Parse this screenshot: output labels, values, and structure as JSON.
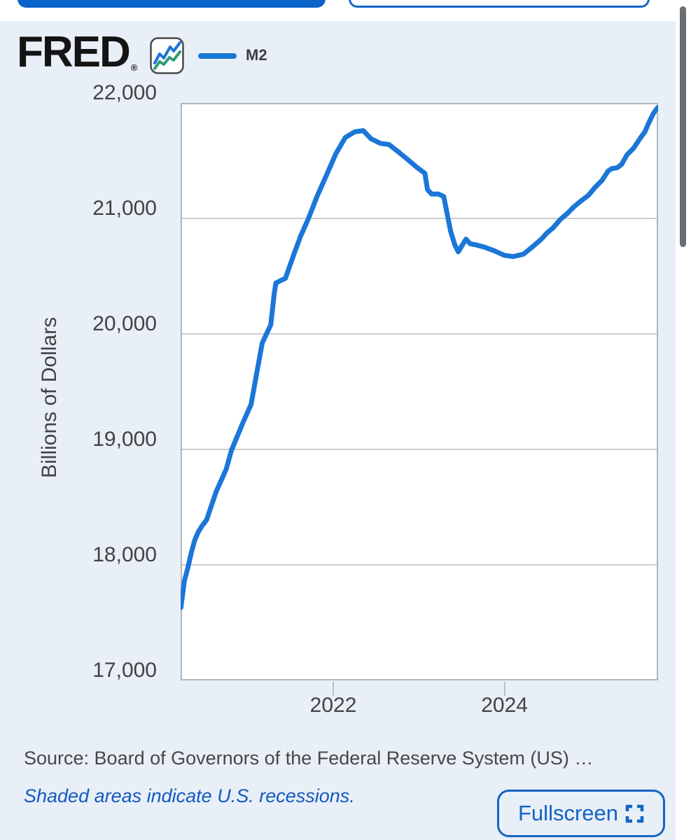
{
  "header": {
    "logo_text": "FRED",
    "registered_mark": "®",
    "legend_series": "M2"
  },
  "footer": {
    "source": "Source: Board of Governors of the Federal Reserve System (US) …",
    "recession_note": "Shaded areas indicate U.S. recessions.",
    "fullscreen_label": "Fullscreen"
  },
  "colors": {
    "panel_background": "#e8eff7",
    "accent_blue": "#1565c0",
    "filled_button_blue": "#0a63c9",
    "line_blue": "#1b76d8",
    "icon_green": "#2e9b72",
    "scrollbar_gray": "#696e73"
  },
  "icons": {
    "fred_chart_icon": "line-chart-icon",
    "fullscreen_icon": "expand-corners-icon"
  },
  "chart_data": {
    "type": "line",
    "ylabel": "Billions of Dollars",
    "xlabel": "",
    "legend_position": "top-left",
    "grid": "horizontal",
    "x_range": [
      2020.217,
      2025.794
    ],
    "ylim": [
      17000,
      22000
    ],
    "x_ticks": [
      2022,
      2024
    ],
    "x_tick_labels": [
      "2022",
      "2024"
    ],
    "y_ticks": [
      17000,
      18000,
      19000,
      20000,
      21000,
      22000
    ],
    "y_tick_labels": [
      "17,000",
      "18,000",
      "19,000",
      "20,000",
      "21,000",
      "22,000"
    ],
    "line_color": "#1b76d8",
    "grid_color": "#cdcdcd",
    "frame_color": "#b3b6ba",
    "series": [
      {
        "name": "M2",
        "x": [
          2020.22,
          2020.26,
          2020.3,
          2020.34,
          2020.38,
          2020.42,
          2020.46,
          2020.52,
          2020.63,
          2020.75,
          2020.81,
          2020.95,
          2021.04,
          2021.17,
          2021.27,
          2021.31,
          2021.33,
          2021.38,
          2021.44,
          2021.54,
          2021.62,
          2021.71,
          2021.81,
          2021.93,
          2022.03,
          2022.14,
          2022.25,
          2022.35,
          2022.44,
          2022.55,
          2022.65,
          2022.77,
          2022.87,
          2022.98,
          2023.07,
          2023.1,
          2023.15,
          2023.23,
          2023.29,
          2023.37,
          2023.42,
          2023.46,
          2023.5,
          2023.55,
          2023.6,
          2023.67,
          2023.77,
          2023.88,
          2024.0,
          2024.1,
          2024.22,
          2024.32,
          2024.43,
          2024.49,
          2024.57,
          2024.65,
          2024.73,
          2024.81,
          2024.89,
          2024.98,
          2025.06,
          2025.14,
          2025.21,
          2025.25,
          2025.32,
          2025.37,
          2025.43,
          2025.51,
          2025.59,
          2025.64,
          2025.68,
          2025.74,
          2025.79
        ],
        "values": [
          17630,
          17860,
          17970,
          18100,
          18210,
          18280,
          18330,
          18390,
          18630,
          18830,
          18990,
          19240,
          19390,
          19920,
          20080,
          20350,
          20440,
          20460,
          20480,
          20690,
          20850,
          21000,
          21190,
          21390,
          21560,
          21700,
          21750,
          21760,
          21690,
          21650,
          21640,
          21570,
          21510,
          21440,
          21390,
          21250,
          21210,
          21210,
          21190,
          20890,
          20770,
          20710,
          20760,
          20820,
          20780,
          20770,
          20750,
          20720,
          20680,
          20670,
          20690,
          20750,
          20820,
          20870,
          20920,
          20990,
          21040,
          21100,
          21150,
          21200,
          21270,
          21330,
          21410,
          21430,
          21440,
          21470,
          21550,
          21610,
          21700,
          21750,
          21820,
          21910,
          21960
        ]
      }
    ]
  }
}
